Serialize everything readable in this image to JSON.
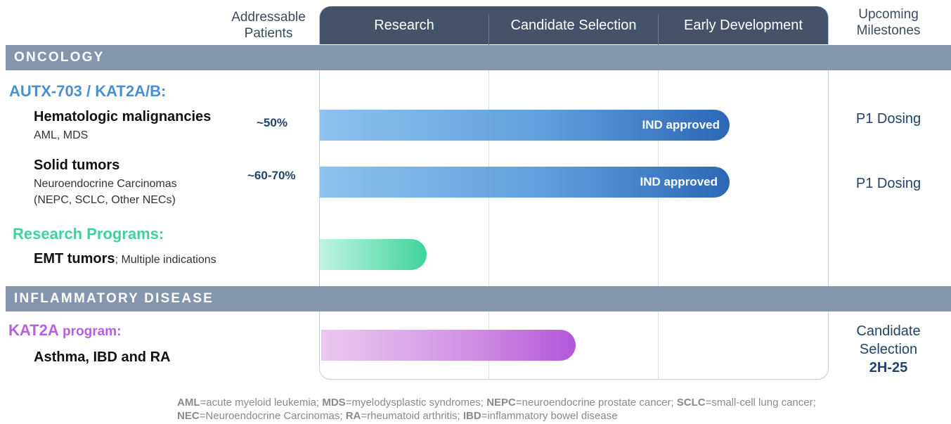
{
  "columns": {
    "patients_header": [
      "Addressable",
      "Patients"
    ],
    "stages": [
      "Research",
      "Candidate Selection",
      "Early Development"
    ],
    "milestones_header": [
      "Upcoming",
      "Milestones"
    ]
  },
  "sections": {
    "oncology": "ONCOLOGY",
    "inflammatory": "INFLAMMATORY DISEASE"
  },
  "groups": {
    "autx": {
      "title": "AUTX-703 / KAT2A/B:",
      "color": "#4a8fd6"
    },
    "research": {
      "title": "Research Programs:",
      "color": "#3fd39b"
    },
    "kat2a": {
      "title_main": "KAT2A",
      "title_rest": " program:",
      "color": "#b95fdc"
    }
  },
  "programs": [
    {
      "name": "Hematologic malignancies",
      "sub": [
        "AML, MDS"
      ],
      "patients": "~50%",
      "bar_label": "IND approved",
      "progress": 0.806,
      "milestone": [
        "P1 Dosing"
      ]
    },
    {
      "name": "Solid tumors",
      "sub": [
        "Neuroendocrine Carcinomas",
        "(NEPC, SCLC, Other NECs)"
      ],
      "patients": "~60-70%",
      "bar_label": "IND approved",
      "progress": 0.806,
      "milestone": [
        "P1 Dosing"
      ]
    },
    {
      "name": "EMT tumors",
      "name_suffix": "; Multiple indications",
      "progress": 0.21
    },
    {
      "name": "Asthma, IBD and RA",
      "progress": 0.5,
      "milestone": [
        "Candidate",
        "Selection",
        "2H-25"
      ]
    }
  ],
  "footnote": [
    {
      "abbr": "AML",
      "text": "=acute myeloid leukemia; "
    },
    {
      "abbr": "MDS",
      "text": "=myelodysplastic syndromes; "
    },
    {
      "abbr": "NEPC",
      "text": "=neuroendocrine prostate cancer; "
    },
    {
      "abbr": "SCLC",
      "text": "=small-cell lung cancer; "
    },
    {
      "abbr": "NEC",
      "text": "=Neuroendocrine Carcinomas; "
    },
    {
      "abbr": "RA",
      "text": "=rheumatoid arthritis; "
    },
    {
      "abbr": "IBD",
      "text": "=inflammatory bowel disease"
    }
  ]
}
